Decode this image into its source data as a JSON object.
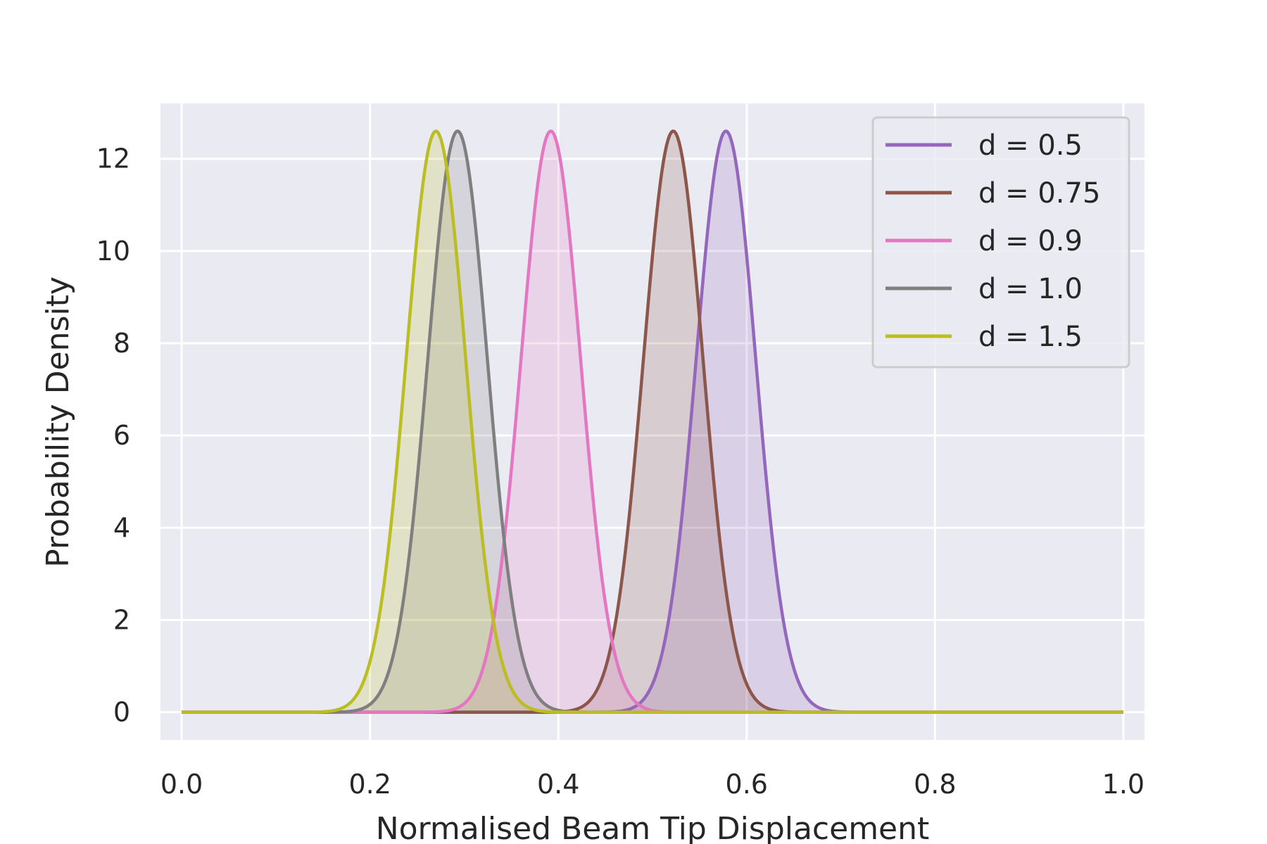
{
  "chart_data": {
    "type": "area",
    "title": "",
    "xlabel": "Normalised Beam Tip Displacement",
    "ylabel": "Probability Density",
    "xlim": [
      -0.0225,
      1.0225
    ],
    "ylim": [
      -0.6,
      13.2
    ],
    "xticks": [
      0.0,
      0.2,
      0.4,
      0.6,
      0.8,
      1.0
    ],
    "xtick_labels": [
      "0.0",
      "0.2",
      "0.4",
      "0.6",
      "0.8",
      "1.0"
    ],
    "yticks": [
      0,
      2,
      4,
      6,
      8,
      10,
      12
    ],
    "ytick_labels": [
      "0",
      "2",
      "4",
      "6",
      "8",
      "10",
      "12"
    ],
    "grid": true,
    "legend_position": "top-right",
    "background": "#eaeaf2",
    "series": [
      {
        "name": "d = 0.5",
        "mean": 0.578,
        "peak": 12.6,
        "std": 0.0317,
        "color": "#9467bd"
      },
      {
        "name": "d = 0.75",
        "mean": 0.522,
        "peak": 12.6,
        "std": 0.0317,
        "color": "#8c564b"
      },
      {
        "name": "d = 0.9",
        "mean": 0.392,
        "peak": 12.6,
        "std": 0.0317,
        "color": "#e377c2"
      },
      {
        "name": "d = 1.0",
        "mean": 0.293,
        "peak": 12.6,
        "std": 0.0317,
        "color": "#7f7f7f"
      },
      {
        "name": "d = 1.5",
        "mean": 0.27,
        "peak": 12.6,
        "std": 0.0317,
        "color": "#bcbd22"
      }
    ]
  }
}
